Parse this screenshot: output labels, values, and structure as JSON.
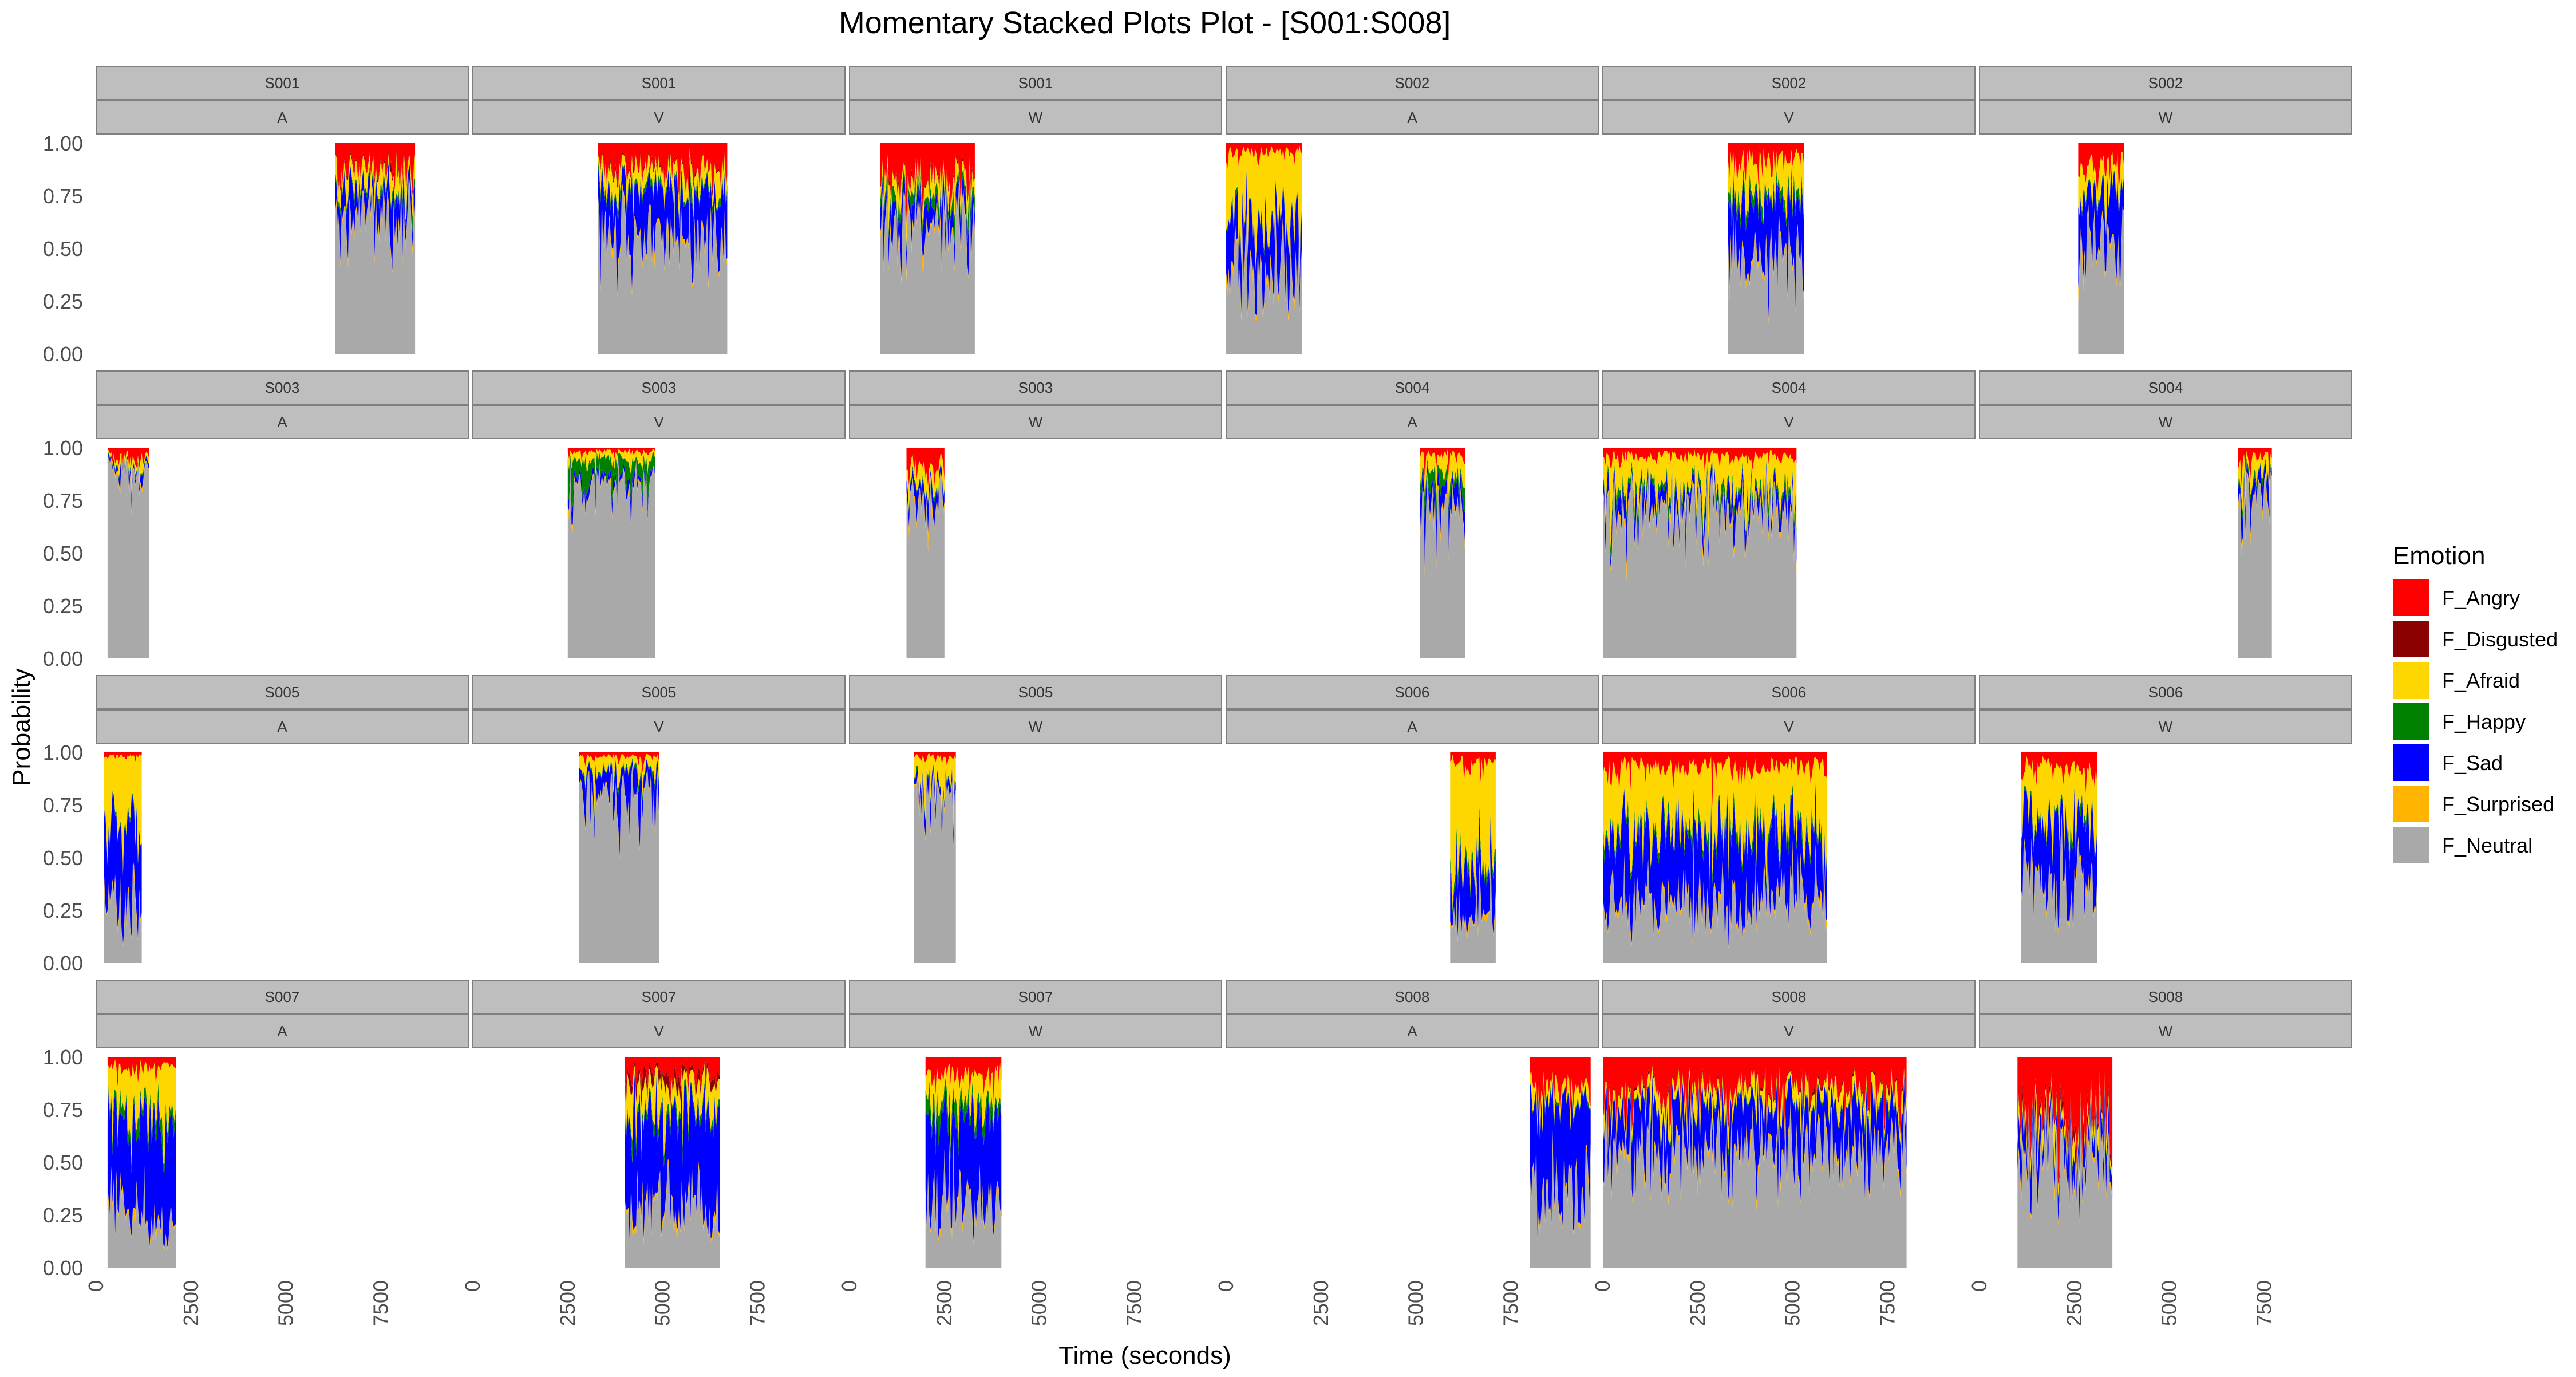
{
  "chart_data": {
    "type": "area",
    "subtype": "stacked-area-facets",
    "title": "Momentary Stacked Plots Plot - [S001:S008]",
    "xlabel": "Time (seconds)",
    "ylabel": "Probability",
    "xlim": [
      0,
      9800
    ],
    "ylim": [
      0,
      1
    ],
    "x_ticks": [
      0,
      2500,
      5000,
      7500
    ],
    "y_ticks": [
      0.0,
      0.25,
      0.5,
      0.75,
      1.0
    ],
    "y_tick_labels": [
      "0.00",
      "0.25",
      "0.50",
      "0.75",
      "1.00"
    ],
    "legend": {
      "title": "Emotion",
      "position": "right",
      "entries": [
        {
          "name": "F_Angry",
          "color": "#ff0000"
        },
        {
          "name": "F_Disgusted",
          "color": "#8b0000"
        },
        {
          "name": "F_Afraid",
          "color": "#ffd700"
        },
        {
          "name": "F_Happy",
          "color": "#008000"
        },
        {
          "name": "F_Sad",
          "color": "#0000ff"
        },
        {
          "name": "F_Surprised",
          "color": "#ffb400"
        },
        {
          "name": "F_Neutral",
          "color": "#a9a9a9"
        }
      ]
    },
    "stack_order_bottom_to_top": [
      "F_Neutral",
      "F_Surprised",
      "F_Sad",
      "F_Happy",
      "F_Afraid",
      "F_Disgusted",
      "F_Angry"
    ],
    "panels": [
      {
        "subject": "S001",
        "condition": "A",
        "t_start": 6300,
        "t_end": 8400,
        "profile": {
          "F_Angry": 0.12,
          "F_Disgusted": 0.01,
          "F_Afraid": 0.08,
          "F_Happy": 0.02,
          "F_Sad": 0.1,
          "F_Surprised": 0.02,
          "F_Neutral": 0.65
        }
      },
      {
        "subject": "S001",
        "condition": "V",
        "t_start": 3300,
        "t_end": 6700,
        "profile": {
          "F_Angry": 0.12,
          "F_Disgusted": 0.01,
          "F_Afraid": 0.08,
          "F_Happy": 0.02,
          "F_Sad": 0.22,
          "F_Surprised": 0.02,
          "F_Neutral": 0.53
        }
      },
      {
        "subject": "S001",
        "condition": "W",
        "t_start": 800,
        "t_end": 3300,
        "profile": {
          "F_Angry": 0.15,
          "F_Disgusted": 0.01,
          "F_Afraid": 0.06,
          "F_Happy": 0.04,
          "F_Sad": 0.08,
          "F_Surprised": 0.02,
          "F_Neutral": 0.64
        }
      },
      {
        "subject": "S002",
        "condition": "A",
        "t_start": 0,
        "t_end": 2000,
        "profile": {
          "F_Angry": 0.04,
          "F_Disgusted": 0.0,
          "F_Afraid": 0.3,
          "F_Happy": 0.01,
          "F_Sad": 0.25,
          "F_Surprised": 0.03,
          "F_Neutral": 0.37
        }
      },
      {
        "subject": "S002",
        "condition": "V",
        "t_start": 3300,
        "t_end": 5300,
        "profile": {
          "F_Angry": 0.08,
          "F_Disgusted": 0.0,
          "F_Afraid": 0.15,
          "F_Happy": 0.04,
          "F_Sad": 0.25,
          "F_Surprised": 0.02,
          "F_Neutral": 0.46
        }
      },
      {
        "subject": "S002",
        "condition": "W",
        "t_start": 2600,
        "t_end": 3800,
        "profile": {
          "F_Angry": 0.1,
          "F_Disgusted": 0.0,
          "F_Afraid": 0.1,
          "F_Happy": 0.01,
          "F_Sad": 0.25,
          "F_Surprised": 0.02,
          "F_Neutral": 0.52
        }
      },
      {
        "subject": "S003",
        "condition": "A",
        "t_start": 300,
        "t_end": 1400,
        "profile": {
          "F_Angry": 0.04,
          "F_Disgusted": 0.0,
          "F_Afraid": 0.03,
          "F_Happy": 0.01,
          "F_Sad": 0.02,
          "F_Surprised": 0.01,
          "F_Neutral": 0.89
        }
      },
      {
        "subject": "S003",
        "condition": "V",
        "t_start": 2500,
        "t_end": 4800,
        "profile": {
          "F_Angry": 0.02,
          "F_Disgusted": 0.0,
          "F_Afraid": 0.04,
          "F_Happy": 0.08,
          "F_Sad": 0.03,
          "F_Surprised": 0.01,
          "F_Neutral": 0.82
        }
      },
      {
        "subject": "S003",
        "condition": "W",
        "t_start": 1500,
        "t_end": 2500,
        "profile": {
          "F_Angry": 0.08,
          "F_Disgusted": 0.0,
          "F_Afraid": 0.06,
          "F_Happy": 0.01,
          "F_Sad": 0.04,
          "F_Surprised": 0.02,
          "F_Neutral": 0.79
        }
      },
      {
        "subject": "S004",
        "condition": "A",
        "t_start": 5100,
        "t_end": 6300,
        "profile": {
          "F_Angry": 0.04,
          "F_Disgusted": 0.0,
          "F_Afraid": 0.1,
          "F_Happy": 0.05,
          "F_Sad": 0.08,
          "F_Surprised": 0.02,
          "F_Neutral": 0.71
        }
      },
      {
        "subject": "S004",
        "condition": "V",
        "t_start": 0,
        "t_end": 5100,
        "profile": {
          "F_Angry": 0.04,
          "F_Disgusted": 0.0,
          "F_Afraid": 0.15,
          "F_Happy": 0.03,
          "F_Sad": 0.06,
          "F_Surprised": 0.02,
          "F_Neutral": 0.7
        }
      },
      {
        "subject": "S004",
        "condition": "W",
        "t_start": 6800,
        "t_end": 7700,
        "profile": {
          "F_Angry": 0.05,
          "F_Disgusted": 0.0,
          "F_Afraid": 0.08,
          "F_Happy": 0.02,
          "F_Sad": 0.06,
          "F_Surprised": 0.02,
          "F_Neutral": 0.77
        }
      },
      {
        "subject": "S005",
        "condition": "A",
        "t_start": 200,
        "t_end": 1200,
        "profile": {
          "F_Angry": 0.02,
          "F_Disgusted": 0.0,
          "F_Afraid": 0.35,
          "F_Happy": 0.01,
          "F_Sad": 0.35,
          "F_Surprised": 0.02,
          "F_Neutral": 0.25
        }
      },
      {
        "subject": "S005",
        "condition": "V",
        "t_start": 2800,
        "t_end": 4900,
        "profile": {
          "F_Angry": 0.02,
          "F_Disgusted": 0.0,
          "F_Afraid": 0.06,
          "F_Happy": 0.01,
          "F_Sad": 0.1,
          "F_Surprised": 0.01,
          "F_Neutral": 0.8
        }
      },
      {
        "subject": "S005",
        "condition": "W",
        "t_start": 1700,
        "t_end": 2800,
        "profile": {
          "F_Angry": 0.02,
          "F_Disgusted": 0.0,
          "F_Afraid": 0.1,
          "F_Happy": 0.01,
          "F_Sad": 0.04,
          "F_Surprised": 0.01,
          "F_Neutral": 0.82
        }
      },
      {
        "subject": "S006",
        "condition": "A",
        "t_start": 5900,
        "t_end": 7100,
        "profile": {
          "F_Angry": 0.05,
          "F_Disgusted": 0.0,
          "F_Afraid": 0.5,
          "F_Happy": 0.03,
          "F_Sad": 0.2,
          "F_Surprised": 0.02,
          "F_Neutral": 0.2
        }
      },
      {
        "subject": "S006",
        "condition": "V",
        "t_start": 0,
        "t_end": 5900,
        "profile": {
          "F_Angry": 0.07,
          "F_Disgusted": 0.0,
          "F_Afraid": 0.3,
          "F_Happy": 0.03,
          "F_Sad": 0.3,
          "F_Surprised": 0.02,
          "F_Neutral": 0.28
        }
      },
      {
        "subject": "S006",
        "condition": "W",
        "t_start": 1100,
        "t_end": 3100,
        "profile": {
          "F_Angry": 0.08,
          "F_Disgusted": 0.0,
          "F_Afraid": 0.22,
          "F_Happy": 0.02,
          "F_Sad": 0.28,
          "F_Surprised": 0.02,
          "F_Neutral": 0.38
        }
      },
      {
        "subject": "S007",
        "condition": "A",
        "t_start": 300,
        "t_end": 2100,
        "profile": {
          "F_Angry": 0.05,
          "F_Disgusted": 0.0,
          "F_Afraid": 0.2,
          "F_Happy": 0.05,
          "F_Sad": 0.45,
          "F_Surprised": 0.02,
          "F_Neutral": 0.23
        }
      },
      {
        "subject": "S007",
        "condition": "V",
        "t_start": 4000,
        "t_end": 6500,
        "profile": {
          "F_Angry": 0.08,
          "F_Disgusted": 0.04,
          "F_Afraid": 0.12,
          "F_Happy": 0.03,
          "F_Sad": 0.45,
          "F_Surprised": 0.02,
          "F_Neutral": 0.26
        }
      },
      {
        "subject": "S007",
        "condition": "W",
        "t_start": 2000,
        "t_end": 4000,
        "profile": {
          "F_Angry": 0.08,
          "F_Disgusted": 0.0,
          "F_Afraid": 0.12,
          "F_Happy": 0.06,
          "F_Sad": 0.4,
          "F_Surprised": 0.02,
          "F_Neutral": 0.32
        }
      },
      {
        "subject": "S008",
        "condition": "A",
        "t_start": 8000,
        "t_end": 9600,
        "profile": {
          "F_Angry": 0.15,
          "F_Disgusted": 0.0,
          "F_Afraid": 0.06,
          "F_Happy": 0.01,
          "F_Sad": 0.4,
          "F_Surprised": 0.02,
          "F_Neutral": 0.36
        }
      },
      {
        "subject": "S008",
        "condition": "V",
        "t_start": 0,
        "t_end": 8000,
        "profile": {
          "F_Angry": 0.15,
          "F_Disgusted": 0.01,
          "F_Afraid": 0.06,
          "F_Happy": 0.01,
          "F_Sad": 0.2,
          "F_Surprised": 0.02,
          "F_Neutral": 0.55
        }
      },
      {
        "subject": "S008",
        "condition": "W",
        "t_start": 1000,
        "t_end": 3500,
        "profile": {
          "F_Angry": 0.25,
          "F_Disgusted": 0.03,
          "F_Afraid": 0.05,
          "F_Happy": 0.01,
          "F_Sad": 0.1,
          "F_Surprised": 0.02,
          "F_Neutral": 0.54
        }
      }
    ]
  }
}
